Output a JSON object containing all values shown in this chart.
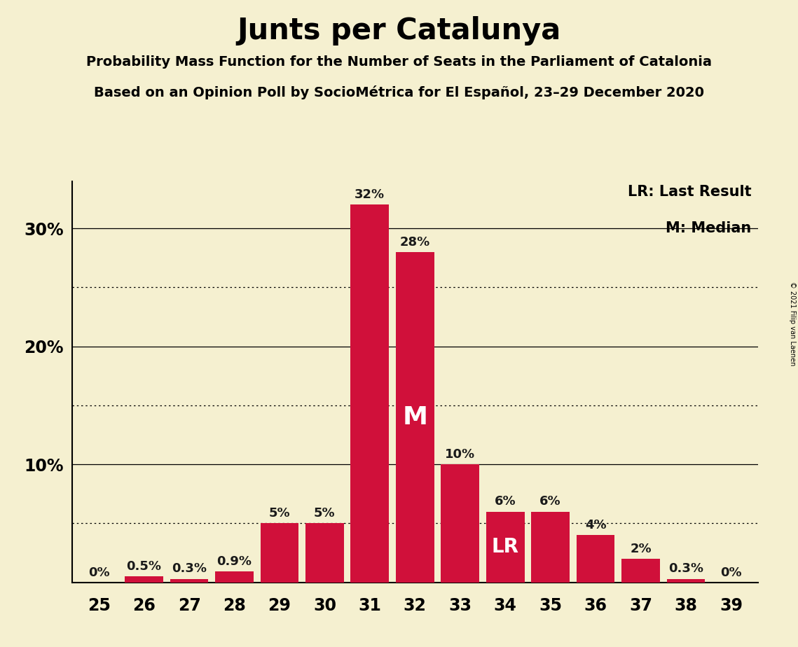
{
  "title": "Junts per Catalunya",
  "subtitle1": "Probability Mass Function for the Number of Seats in the Parliament of Catalonia",
  "subtitle2": "Based on an Opinion Poll by SocioMétrica for El Español, 23–29 December 2020",
  "copyright": "© 2021 Filip van Laenen",
  "categories": [
    25,
    26,
    27,
    28,
    29,
    30,
    31,
    32,
    33,
    34,
    35,
    36,
    37,
    38,
    39
  ],
  "values": [
    0.0,
    0.5,
    0.3,
    0.9,
    5.0,
    5.0,
    32.0,
    28.0,
    10.0,
    6.0,
    6.0,
    4.0,
    2.0,
    0.3,
    0.0
  ],
  "bar_color": "#D0103A",
  "background_color": "#F5F0D0",
  "label_color": "#1A1A1A",
  "median_cat": 32,
  "last_result_cat": 34,
  "legend_lr": "LR: Last Result",
  "legend_m": "M: Median",
  "ylim": [
    0,
    34
  ],
  "yticks": [
    0,
    10,
    20,
    30
  ],
  "ytick_labels": [
    "",
    "10%",
    "20%",
    "30%"
  ],
  "dotted_grid": [
    5,
    15,
    25
  ],
  "solid_grid": [
    10,
    20,
    30
  ]
}
